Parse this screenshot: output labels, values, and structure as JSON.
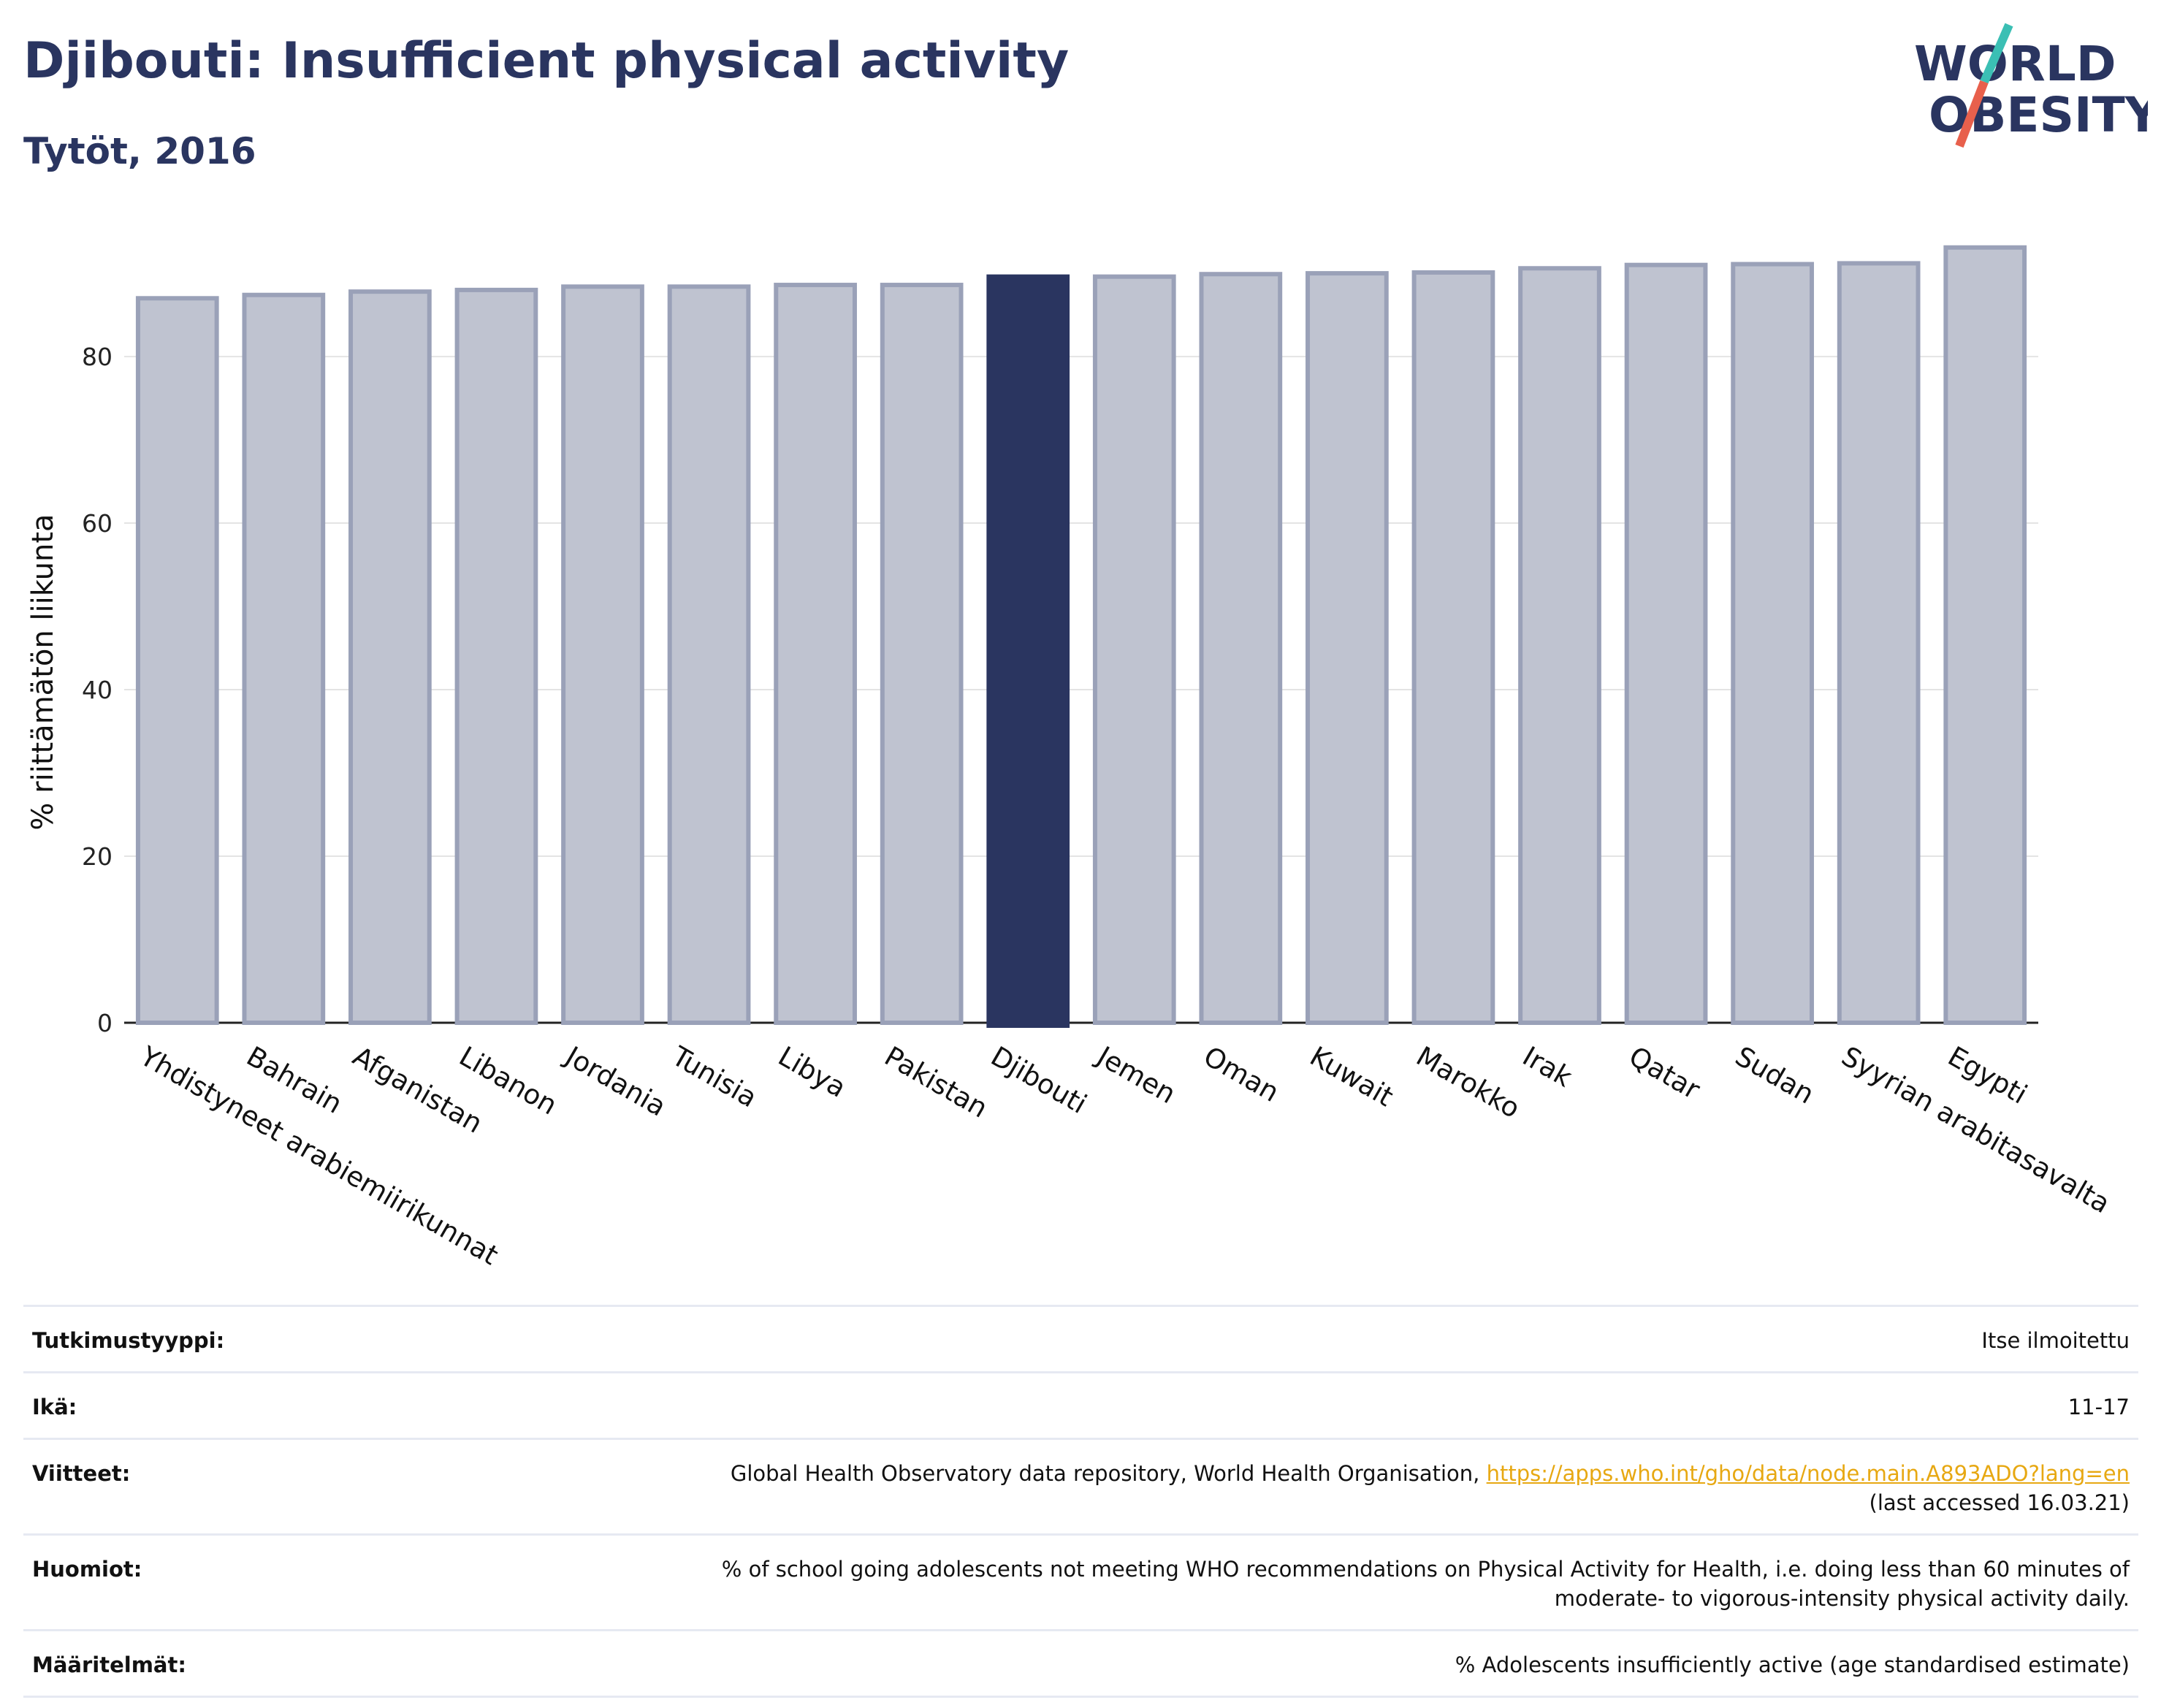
{
  "header": {
    "title": "Djibouti: Insufficient physical activity",
    "subtitle": "Tytöt, 2016"
  },
  "logo": {
    "line1": "WORLD",
    "line2": "OBESITY",
    "colors": {
      "text": "#2a3560",
      "slash_teal": "#3bbfb4",
      "slash_red": "#e8604c"
    }
  },
  "chart_data": {
    "type": "bar",
    "categories": [
      "Yhdistyneet arabiemiirikunnat",
      "Bahrain",
      "Afganistan",
      "Libanon",
      "Jordania",
      "Tunisia",
      "Libya",
      "Pakistan",
      "Djibouti",
      "Jemen",
      "Oman",
      "Kuwait",
      "Marokko",
      "Irak",
      "Qatar",
      "Sudan",
      "Syyrian arabitasavalta",
      "Egypti"
    ],
    "values": [
      87.0,
      87.4,
      87.8,
      88.0,
      88.4,
      88.4,
      88.6,
      88.6,
      89.6,
      89.6,
      89.9,
      90.0,
      90.1,
      90.6,
      91.0,
      91.1,
      91.2,
      93.1
    ],
    "highlight": "Djibouti",
    "ylabel": "% riittämätön liikunta",
    "ylim": [
      0,
      96.5
    ],
    "yticks": [
      0,
      20,
      40,
      60,
      80
    ],
    "grid": true,
    "colors": {
      "bar": "#bfc3d0",
      "bar_edge": "#9aa1b8",
      "highlight": "#2a3560"
    }
  },
  "info": [
    {
      "key": "Tutkimustyyppi:",
      "value": "Itse ilmoitettu"
    },
    {
      "key": "Ikä:",
      "value": "11-17"
    },
    {
      "key": "Viitteet:",
      "value": "Global Health Observatory data repository, World Health Organisation,",
      "link": "https://apps.who.int/gho/data/node.main.A893ADO?lang=en",
      "value2": "(last accessed 16.03.21)"
    },
    {
      "key": "Huomiot:",
      "value": "% of school going adolescents not meeting WHO recommendations on Physical Activity for Health, i.e. doing less than 60 minutes of",
      "value2": "moderate- to vigorous-intensity physical activity daily."
    },
    {
      "key": "Määritelmät:",
      "value": "% Adolescents insufficiently active (age standardised estimate)"
    }
  ]
}
